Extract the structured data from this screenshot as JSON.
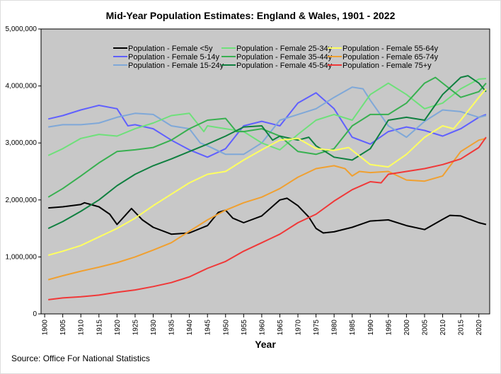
{
  "chart_data": {
    "type": "line",
    "title": "Mid-Year Population Estimates: England & Wales, 1901 - 2022",
    "xlabel": "Year",
    "ylabel": "",
    "xlim": [
      1899,
      2023
    ],
    "ylim": [
      0,
      5000000
    ],
    "x_ticks": [
      "1900",
      "1905",
      "1910",
      "1915",
      "1920",
      "1925",
      "1930",
      "1935",
      "1940",
      "1945",
      "1950",
      "1955",
      "1960",
      "1965",
      "1970",
      "1975",
      "1980",
      "1985",
      "1990",
      "1995",
      "2000",
      "2005",
      "2010",
      "2015",
      "2020"
    ],
    "y_ticks": [
      "0",
      "1,000,000",
      "2,000,000",
      "3,000,000",
      "4,000,000",
      "5,000,000"
    ],
    "grid": false,
    "legend_position": "top",
    "source": "Source: Office For National Statistics",
    "series": [
      {
        "name": "Population - Female <5y",
        "color": "#000000",
        "points": [
          [
            1901,
            1.86
          ],
          [
            1905,
            1.88
          ],
          [
            1910,
            1.92
          ],
          [
            1911,
            1.95
          ],
          [
            1915,
            1.88
          ],
          [
            1918,
            1.75
          ],
          [
            1920,
            1.57
          ],
          [
            1924,
            1.85
          ],
          [
            1927,
            1.65
          ],
          [
            1930,
            1.52
          ],
          [
            1935,
            1.4
          ],
          [
            1940,
            1.42
          ],
          [
            1945,
            1.55
          ],
          [
            1948,
            1.78
          ],
          [
            1950,
            1.82
          ],
          [
            1952,
            1.68
          ],
          [
            1955,
            1.6
          ],
          [
            1960,
            1.72
          ],
          [
            1965,
            2.0
          ],
          [
            1967,
            2.03
          ],
          [
            1970,
            1.9
          ],
          [
            1973,
            1.7
          ],
          [
            1975,
            1.5
          ],
          [
            1977,
            1.42
          ],
          [
            1980,
            1.44
          ],
          [
            1985,
            1.52
          ],
          [
            1990,
            1.63
          ],
          [
            1995,
            1.65
          ],
          [
            2000,
            1.55
          ],
          [
            2005,
            1.48
          ],
          [
            2010,
            1.66
          ],
          [
            2012,
            1.73
          ],
          [
            2015,
            1.72
          ],
          [
            2020,
            1.6
          ],
          [
            2022,
            1.57
          ]
        ]
      },
      {
        "name": "Population - Female 5-14y",
        "color": "#6060ff",
        "points": [
          [
            1901,
            3.42
          ],
          [
            1905,
            3.48
          ],
          [
            1910,
            3.58
          ],
          [
            1915,
            3.66
          ],
          [
            1920,
            3.6
          ],
          [
            1923,
            3.3
          ],
          [
            1925,
            3.32
          ],
          [
            1930,
            3.25
          ],
          [
            1935,
            3.05
          ],
          [
            1940,
            2.88
          ],
          [
            1945,
            2.75
          ],
          [
            1950,
            2.9
          ],
          [
            1955,
            3.3
          ],
          [
            1960,
            3.38
          ],
          [
            1965,
            3.3
          ],
          [
            1970,
            3.7
          ],
          [
            1975,
            3.88
          ],
          [
            1980,
            3.6
          ],
          [
            1985,
            3.1
          ],
          [
            1990,
            2.98
          ],
          [
            1995,
            3.2
          ],
          [
            2000,
            3.28
          ],
          [
            2005,
            3.22
          ],
          [
            2010,
            3.12
          ],
          [
            2015,
            3.25
          ],
          [
            2020,
            3.45
          ],
          [
            2022,
            3.5
          ]
        ]
      },
      {
        "name": "Population - Female 15-24y",
        "color": "#7fa8d8",
        "points": [
          [
            1901,
            3.28
          ],
          [
            1905,
            3.32
          ],
          [
            1910,
            3.32
          ],
          [
            1915,
            3.35
          ],
          [
            1920,
            3.45
          ],
          [
            1925,
            3.52
          ],
          [
            1930,
            3.5
          ],
          [
            1935,
            3.3
          ],
          [
            1940,
            3.25
          ],
          [
            1943,
            3.0
          ],
          [
            1945,
            2.95
          ],
          [
            1950,
            2.8
          ],
          [
            1955,
            2.8
          ],
          [
            1960,
            3.0
          ],
          [
            1965,
            3.4
          ],
          [
            1970,
            3.5
          ],
          [
            1975,
            3.6
          ],
          [
            1980,
            3.8
          ],
          [
            1985,
            3.98
          ],
          [
            1988,
            3.95
          ],
          [
            1990,
            3.75
          ],
          [
            1995,
            3.3
          ],
          [
            2000,
            3.1
          ],
          [
            2005,
            3.38
          ],
          [
            2010,
            3.58
          ],
          [
            2015,
            3.55
          ],
          [
            2020,
            3.45
          ],
          [
            2022,
            3.48
          ]
        ]
      },
      {
        "name": "Population - Female 25-34y",
        "color": "#6ee07a",
        "points": [
          [
            1901,
            2.78
          ],
          [
            1905,
            2.9
          ],
          [
            1910,
            3.08
          ],
          [
            1915,
            3.15
          ],
          [
            1920,
            3.12
          ],
          [
            1925,
            3.25
          ],
          [
            1930,
            3.35
          ],
          [
            1935,
            3.48
          ],
          [
            1940,
            3.52
          ],
          [
            1944,
            3.2
          ],
          [
            1945,
            3.3
          ],
          [
            1950,
            3.25
          ],
          [
            1955,
            3.2
          ],
          [
            1960,
            3.0
          ],
          [
            1965,
            2.88
          ],
          [
            1970,
            3.15
          ],
          [
            1975,
            3.4
          ],
          [
            1980,
            3.5
          ],
          [
            1985,
            3.4
          ],
          [
            1990,
            3.85
          ],
          [
            1995,
            4.05
          ],
          [
            2000,
            3.85
          ],
          [
            2005,
            3.6
          ],
          [
            2010,
            3.7
          ],
          [
            2015,
            3.95
          ],
          [
            2020,
            4.12
          ],
          [
            2022,
            4.13
          ]
        ]
      },
      {
        "name": "Population - Female 35-44y",
        "color": "#38b050",
        "points": [
          [
            1901,
            2.05
          ],
          [
            1905,
            2.2
          ],
          [
            1910,
            2.42
          ],
          [
            1915,
            2.65
          ],
          [
            1920,
            2.85
          ],
          [
            1925,
            2.88
          ],
          [
            1930,
            2.92
          ],
          [
            1935,
            3.05
          ],
          [
            1940,
            3.25
          ],
          [
            1945,
            3.4
          ],
          [
            1950,
            3.43
          ],
          [
            1953,
            3.2
          ],
          [
            1955,
            3.2
          ],
          [
            1960,
            3.25
          ],
          [
            1965,
            3.12
          ],
          [
            1970,
            2.85
          ],
          [
            1975,
            2.8
          ],
          [
            1980,
            2.9
          ],
          [
            1985,
            3.3
          ],
          [
            1990,
            3.5
          ],
          [
            1995,
            3.5
          ],
          [
            2000,
            3.7
          ],
          [
            2005,
            4.05
          ],
          [
            2008,
            4.15
          ],
          [
            2010,
            4.05
          ],
          [
            2015,
            3.8
          ],
          [
            2020,
            3.9
          ],
          [
            2022,
            4.05
          ]
        ]
      },
      {
        "name": "Population - Female 45-54y",
        "color": "#108040",
        "points": [
          [
            1901,
            1.5
          ],
          [
            1905,
            1.62
          ],
          [
            1910,
            1.8
          ],
          [
            1915,
            2.0
          ],
          [
            1920,
            2.25
          ],
          [
            1925,
            2.45
          ],
          [
            1930,
            2.6
          ],
          [
            1935,
            2.72
          ],
          [
            1940,
            2.85
          ],
          [
            1945,
            2.98
          ],
          [
            1950,
            3.12
          ],
          [
            1955,
            3.28
          ],
          [
            1960,
            3.3
          ],
          [
            1963,
            3.05
          ],
          [
            1965,
            3.12
          ],
          [
            1970,
            3.05
          ],
          [
            1973,
            3.1
          ],
          [
            1975,
            2.95
          ],
          [
            1980,
            2.75
          ],
          [
            1985,
            2.7
          ],
          [
            1990,
            2.9
          ],
          [
            1995,
            3.4
          ],
          [
            2000,
            3.45
          ],
          [
            2005,
            3.4
          ],
          [
            2010,
            3.85
          ],
          [
            2015,
            4.15
          ],
          [
            2017,
            4.18
          ],
          [
            2020,
            4.05
          ],
          [
            2022,
            3.9
          ]
        ]
      },
      {
        "name": "Population - Female 55-64y",
        "color": "#ffff60",
        "points": [
          [
            1901,
            1.03
          ],
          [
            1905,
            1.1
          ],
          [
            1910,
            1.2
          ],
          [
            1915,
            1.35
          ],
          [
            1920,
            1.5
          ],
          [
            1925,
            1.68
          ],
          [
            1930,
            1.9
          ],
          [
            1935,
            2.1
          ],
          [
            1940,
            2.3
          ],
          [
            1945,
            2.45
          ],
          [
            1950,
            2.5
          ],
          [
            1955,
            2.7
          ],
          [
            1960,
            2.88
          ],
          [
            1965,
            3.05
          ],
          [
            1970,
            3.08
          ],
          [
            1975,
            2.9
          ],
          [
            1980,
            2.87
          ],
          [
            1984,
            2.92
          ],
          [
            1990,
            2.62
          ],
          [
            1995,
            2.58
          ],
          [
            2000,
            2.8
          ],
          [
            2005,
            3.1
          ],
          [
            2010,
            3.3
          ],
          [
            2013,
            3.25
          ],
          [
            2015,
            3.4
          ],
          [
            2020,
            3.8
          ],
          [
            2022,
            3.95
          ]
        ]
      },
      {
        "name": "Population - Female 65-74y",
        "color": "#f0a030",
        "points": [
          [
            1901,
            0.6
          ],
          [
            1905,
            0.67
          ],
          [
            1910,
            0.75
          ],
          [
            1915,
            0.82
          ],
          [
            1920,
            0.9
          ],
          [
            1925,
            1.0
          ],
          [
            1930,
            1.12
          ],
          [
            1935,
            1.25
          ],
          [
            1940,
            1.45
          ],
          [
            1945,
            1.65
          ],
          [
            1950,
            1.82
          ],
          [
            1955,
            1.95
          ],
          [
            1960,
            2.05
          ],
          [
            1965,
            2.2
          ],
          [
            1970,
            2.4
          ],
          [
            1975,
            2.55
          ],
          [
            1980,
            2.6
          ],
          [
            1983,
            2.55
          ],
          [
            1985,
            2.42
          ],
          [
            1987,
            2.5
          ],
          [
            1990,
            2.48
          ],
          [
            1995,
            2.5
          ],
          [
            2000,
            2.35
          ],
          [
            2005,
            2.33
          ],
          [
            2010,
            2.42
          ],
          [
            2015,
            2.85
          ],
          [
            2020,
            3.05
          ],
          [
            2022,
            3.08
          ]
        ]
      },
      {
        "name": "Population - Female 75+y",
        "color": "#f03838",
        "points": [
          [
            1901,
            0.25
          ],
          [
            1905,
            0.28
          ],
          [
            1910,
            0.3
          ],
          [
            1915,
            0.33
          ],
          [
            1920,
            0.38
          ],
          [
            1925,
            0.42
          ],
          [
            1930,
            0.48
          ],
          [
            1935,
            0.55
          ],
          [
            1940,
            0.65
          ],
          [
            1945,
            0.8
          ],
          [
            1950,
            0.92
          ],
          [
            1955,
            1.1
          ],
          [
            1960,
            1.25
          ],
          [
            1965,
            1.4
          ],
          [
            1970,
            1.6
          ],
          [
            1975,
            1.75
          ],
          [
            1980,
            1.98
          ],
          [
            1985,
            2.18
          ],
          [
            1990,
            2.32
          ],
          [
            1993,
            2.3
          ],
          [
            1995,
            2.45
          ],
          [
            2000,
            2.5
          ],
          [
            2005,
            2.55
          ],
          [
            2010,
            2.62
          ],
          [
            2015,
            2.72
          ],
          [
            2020,
            2.92
          ],
          [
            2022,
            3.1
          ]
        ]
      }
    ],
    "values_unit": "millions"
  }
}
